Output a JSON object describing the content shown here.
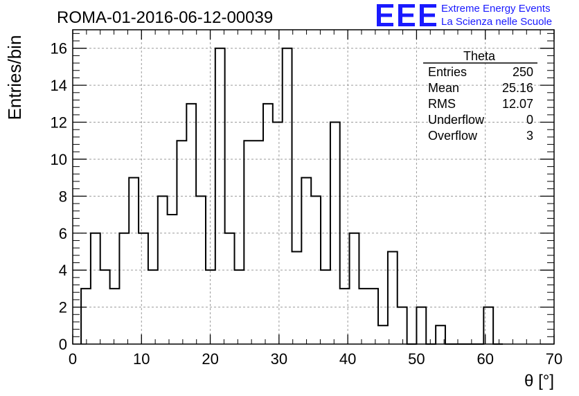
{
  "title": "ROMA-01-2016-06-12-00039",
  "logo": {
    "mark": "EEE",
    "line1": "Extreme Energy Events",
    "line2": "La Scienza nelle Scuole",
    "color": "#1a1aff"
  },
  "stats": {
    "name": "Theta",
    "rows": [
      {
        "label": "Entries",
        "value": "250"
      },
      {
        "label": "Mean",
        "value": "25.16"
      },
      {
        "label": "RMS",
        "value": "12.07"
      },
      {
        "label": "Underflow",
        "value": "0"
      },
      {
        "label": "Overflow",
        "value": "3"
      }
    ]
  },
  "chart_data": {
    "type": "bar",
    "style": "step-histogram",
    "title": "ROMA-01-2016-06-12-00039",
    "xlabel": "θ [°]",
    "ylabel": "Entries/bin",
    "xlim": [
      0,
      70
    ],
    "ylim": [
      0,
      17
    ],
    "xticks": [
      "0",
      "10",
      "20",
      "30",
      "40",
      "50",
      "60",
      "70"
    ],
    "yticks": [
      "0",
      "2",
      "4",
      "6",
      "8",
      "10",
      "12",
      "14",
      "16"
    ],
    "grid": true,
    "bin_edges": [
      1.22,
      2.61,
      4.0,
      5.4,
      6.79,
      8.18,
      9.58,
      10.97,
      12.37,
      13.76,
      15.15,
      16.55,
      17.94,
      19.34,
      20.73,
      22.12,
      23.52,
      24.91,
      26.3,
      27.7,
      29.09,
      30.49,
      31.88,
      33.27,
      34.67,
      36.06,
      37.46,
      38.85,
      40.24,
      41.64,
      43.03,
      44.42,
      45.82,
      47.21,
      48.61,
      50.0,
      51.39,
      52.79,
      54.18,
      55.58,
      56.97,
      58.37,
      59.76,
      61.15,
      62.55
    ],
    "values": [
      3,
      6,
      4,
      3,
      6,
      9,
      6,
      4,
      8,
      7,
      11,
      13,
      8,
      4,
      16,
      6,
      4,
      11,
      11,
      13,
      12,
      16,
      5,
      9,
      8,
      4,
      12,
      3,
      6,
      3,
      3,
      1,
      5,
      2,
      0,
      2,
      0,
      1,
      0,
      0,
      0,
      0,
      2,
      0
    ],
    "colors": {
      "line": "#000000",
      "grid": "#9a9a9a"
    }
  }
}
